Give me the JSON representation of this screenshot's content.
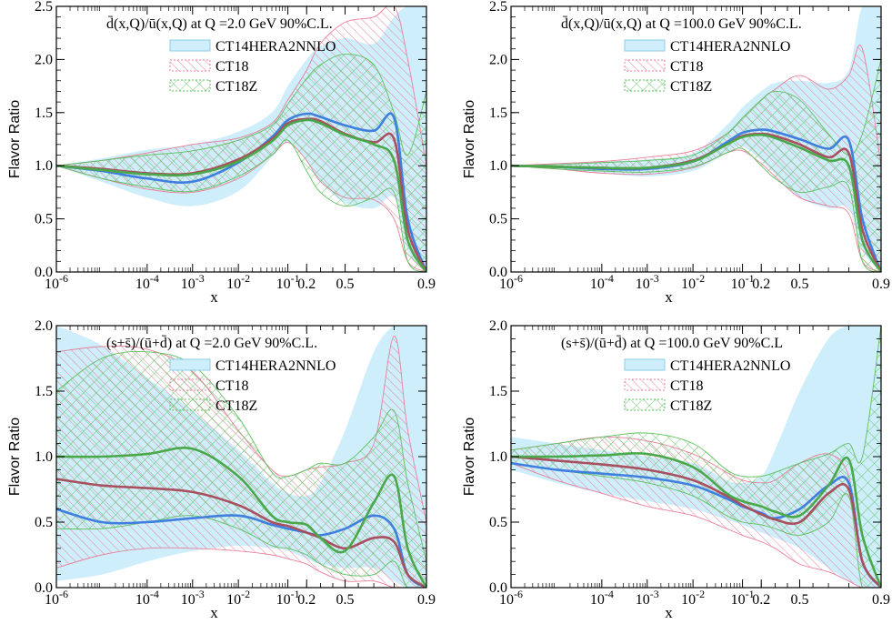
{
  "colors": {
    "ct14": "#3f7fdf",
    "ct14_band_fill": "#cdeefa",
    "ct14_band_edge": "#8fcde8",
    "ct18": "#a85060",
    "ct18_band": "#e8809a",
    "ct18z": "#4aa84a",
    "ct18z_band": "#5ec05e"
  },
  "chart_data": [
    {
      "type": "line",
      "title": "d̄(x,Q)/ū(x,Q) at Q =2.0 GeV 90%C.L.",
      "xlabel": "x",
      "ylabel": "Flavor Ratio",
      "x_scale": "log-log(1/x) hybrid",
      "xlim": [
        1e-06,
        0.9
      ],
      "ylim": [
        0,
        2.5
      ],
      "x_ticks": [
        "10-6",
        "10-4",
        "10-3",
        "10-2",
        "10-1",
        "0.2",
        "0.5",
        "0.9"
      ],
      "y_ticks": [
        "0.0",
        "0.5",
        "1.0",
        "1.5",
        "2.0",
        "2.5"
      ],
      "legend_position": "top-right",
      "legend": [
        "CT14HERA2NNLO",
        "CT18",
        "CT18Z"
      ],
      "x": [
        1e-06,
        1e-05,
        0.0001,
        0.001,
        0.01,
        0.05,
        0.1,
        0.2,
        0.3,
        0.5,
        0.7,
        0.8,
        0.85,
        0.9
      ],
      "series": [
        {
          "name": "CT14HERA2NNLO",
          "values": [
            1.0,
            0.95,
            0.88,
            0.85,
            1.03,
            1.27,
            1.43,
            1.49,
            1.46,
            1.38,
            1.33,
            1.45,
            0.5,
            0.0
          ],
          "band_low": [
            1.0,
            0.85,
            0.7,
            0.62,
            0.76,
            1.08,
            1.22,
            1.05,
            0.85,
            0.65,
            0.6,
            0.7,
            0.2,
            0.0
          ],
          "band_high": [
            1.0,
            1.07,
            1.15,
            1.2,
            1.32,
            1.5,
            1.75,
            2.0,
            2.12,
            2.2,
            2.15,
            2.4,
            2.5,
            2.5
          ]
        },
        {
          "name": "CT18",
          "values": [
            1.0,
            0.97,
            0.93,
            0.93,
            1.06,
            1.25,
            1.4,
            1.44,
            1.42,
            1.3,
            1.22,
            1.25,
            0.4,
            0.0
          ],
          "band_low": [
            1.0,
            0.88,
            0.78,
            0.75,
            0.88,
            1.1,
            1.22,
            1.05,
            0.85,
            0.7,
            0.68,
            0.5,
            0.1,
            0.0
          ],
          "band_high": [
            1.0,
            1.05,
            1.12,
            1.2,
            1.26,
            1.4,
            1.62,
            1.9,
            2.15,
            2.35,
            2.4,
            2.5,
            2.0,
            1.0
          ]
        },
        {
          "name": "CT18Z",
          "values": [
            1.0,
            0.96,
            0.92,
            0.92,
            1.04,
            1.23,
            1.38,
            1.43,
            1.4,
            1.29,
            1.2,
            1.05,
            0.3,
            0.0
          ],
          "band_low": [
            1.0,
            0.88,
            0.8,
            0.76,
            0.9,
            1.1,
            1.24,
            0.95,
            0.75,
            0.62,
            0.7,
            0.75,
            0.1,
            0.0
          ],
          "band_high": [
            1.0,
            1.05,
            1.1,
            1.14,
            1.24,
            1.38,
            1.58,
            1.82,
            1.95,
            2.05,
            1.95,
            1.5,
            1.1,
            1.7
          ]
        }
      ]
    },
    {
      "type": "line",
      "title": "d̄(x,Q)/ū(x,Q) at Q =100.0 GeV 90%C.L.",
      "xlabel": "x",
      "ylabel": "Flavor Ratio",
      "x_scale": "log-log(1/x) hybrid",
      "xlim": [
        1e-06,
        0.9
      ],
      "ylim": [
        0,
        2.5
      ],
      "x_ticks": [
        "10-6",
        "10-4",
        "10-3",
        "10-2",
        "10-1",
        "0.2",
        "0.5",
        "0.9"
      ],
      "y_ticks": [
        "0.0",
        "0.5",
        "1.0",
        "1.5",
        "2.0",
        "2.5"
      ],
      "legend_position": "top-right",
      "legend": [
        "CT14HERA2NNLO",
        "CT18",
        "CT18Z"
      ],
      "x": [
        1e-06,
        1e-05,
        0.0001,
        0.001,
        0.01,
        0.05,
        0.1,
        0.2,
        0.3,
        0.5,
        0.7,
        0.8,
        0.85,
        0.9
      ],
      "series": [
        {
          "name": "CT14HERA2NNLO",
          "values": [
            1.0,
            0.99,
            0.97,
            0.97,
            1.04,
            1.22,
            1.31,
            1.34,
            1.32,
            1.25,
            1.16,
            1.24,
            0.5,
            0.0
          ],
          "band_low": [
            1.0,
            0.97,
            0.93,
            0.9,
            0.95,
            1.12,
            1.18,
            1.05,
            0.92,
            0.7,
            0.6,
            0.6,
            0.2,
            0.0
          ],
          "band_high": [
            1.0,
            1.02,
            1.04,
            1.06,
            1.12,
            1.38,
            1.55,
            1.7,
            1.78,
            1.8,
            1.78,
            1.9,
            2.5,
            2.5
          ]
        },
        {
          "name": "CT18",
          "values": [
            1.0,
            0.99,
            0.98,
            0.98,
            1.05,
            1.2,
            1.28,
            1.3,
            1.28,
            1.2,
            1.08,
            1.12,
            0.4,
            0.0
          ],
          "band_low": [
            1.0,
            0.97,
            0.93,
            0.92,
            0.98,
            1.12,
            1.14,
            1.02,
            0.9,
            0.7,
            0.62,
            0.55,
            0.1,
            0.0
          ],
          "band_high": [
            1.0,
            1.02,
            1.04,
            1.08,
            1.14,
            1.3,
            1.45,
            1.62,
            1.72,
            1.85,
            1.72,
            1.85,
            2.1,
            1.0
          ]
        },
        {
          "name": "CT18Z",
          "values": [
            1.0,
            0.99,
            0.98,
            0.98,
            1.04,
            1.2,
            1.27,
            1.29,
            1.26,
            1.17,
            1.05,
            1.0,
            0.3,
            0.0
          ],
          "band_low": [
            1.0,
            0.97,
            0.95,
            0.94,
            0.99,
            1.12,
            1.16,
            1.0,
            0.88,
            0.75,
            0.8,
            0.8,
            0.1,
            0.0
          ],
          "band_high": [
            1.0,
            1.01,
            1.03,
            1.05,
            1.1,
            1.3,
            1.45,
            1.62,
            1.7,
            1.62,
            1.3,
            1.1,
            1.3,
            2.0
          ]
        }
      ]
    },
    {
      "type": "line",
      "title": "(s+s̄)/(ū+d̄) at Q =2.0 GeV 90%C.L.",
      "xlabel": "x",
      "ylabel": "Flavor Ratio",
      "x_scale": "log-log(1/x) hybrid",
      "xlim": [
        1e-06,
        0.9
      ],
      "ylim": [
        0,
        2.0
      ],
      "x_ticks": [
        "10-6",
        "10-4",
        "10-3",
        "10-2",
        "10-1",
        "0.2",
        "0.5",
        "0.9"
      ],
      "y_ticks": [
        "0.0",
        "0.5",
        "1.0",
        "1.5",
        "2.0"
      ],
      "legend_position": "top-right",
      "legend": [
        "CT14HERA2NNLO",
        "CT18",
        "CT18Z"
      ],
      "x": [
        1e-06,
        1e-05,
        0.0001,
        0.001,
        0.01,
        0.05,
        0.1,
        0.2,
        0.3,
        0.5,
        0.7,
        0.8,
        0.85,
        0.9
      ],
      "series": [
        {
          "name": "CT14HERA2NNLO",
          "values": [
            0.6,
            0.5,
            0.5,
            0.53,
            0.55,
            0.48,
            0.45,
            0.42,
            0.4,
            0.45,
            0.55,
            0.45,
            0.1,
            0.0
          ],
          "band_low": [
            0.05,
            0.1,
            0.2,
            0.28,
            0.32,
            0.3,
            0.28,
            0.22,
            0.18,
            0.15,
            0.15,
            0.05,
            0.0,
            0.0
          ],
          "band_high": [
            2.0,
            1.85,
            1.6,
            1.35,
            1.05,
            0.8,
            0.72,
            0.7,
            0.8,
            1.2,
            1.8,
            2.0,
            2.0,
            2.0
          ]
        },
        {
          "name": "CT18",
          "values": [
            0.83,
            0.78,
            0.76,
            0.73,
            0.63,
            0.5,
            0.47,
            0.42,
            0.38,
            0.3,
            0.38,
            0.35,
            0.1,
            0.0
          ],
          "band_low": [
            0.15,
            0.25,
            0.3,
            0.3,
            0.28,
            0.25,
            0.22,
            0.18,
            0.12,
            0.05,
            0.05,
            0.0,
            0.0,
            0.0
          ],
          "band_high": [
            1.8,
            1.84,
            1.82,
            1.65,
            1.2,
            0.9,
            0.85,
            0.9,
            0.92,
            0.95,
            1.1,
            1.92,
            1.2,
            0.5
          ]
        },
        {
          "name": "CT18Z",
          "values": [
            1.0,
            1.0,
            1.02,
            1.06,
            0.85,
            0.55,
            0.5,
            0.48,
            0.38,
            0.28,
            0.65,
            0.85,
            0.3,
            0.0
          ],
          "band_low": [
            0.45,
            0.45,
            0.5,
            0.55,
            0.45,
            0.32,
            0.3,
            0.25,
            0.18,
            0.1,
            0.1,
            0.2,
            0.0,
            0.0
          ],
          "band_high": [
            1.5,
            1.75,
            1.8,
            1.7,
            1.3,
            0.88,
            0.85,
            0.9,
            0.95,
            0.95,
            1.15,
            1.35,
            0.8,
            0.2
          ]
        }
      ]
    },
    {
      "type": "line",
      "title": "(s+s̄)/(ū+d̄) at Q =100.0 GeV 90%C.L",
      "xlabel": "x",
      "ylabel": "Flavor Ratio",
      "x_scale": "log-log(1/x) hybrid",
      "xlim": [
        1e-06,
        0.9
      ],
      "ylim": [
        0,
        2.0
      ],
      "x_ticks": [
        "10-6",
        "10-4",
        "10-3",
        "10-2",
        "10-1",
        "0.2",
        "0.5",
        "0.9"
      ],
      "y_ticks": [
        "0.0",
        "0.5",
        "1.0",
        "1.5",
        "2.0"
      ],
      "legend_position": "top-right",
      "legend": [
        "CT14HERA2NNLO",
        "CT18",
        "CT18Z"
      ],
      "x": [
        1e-06,
        1e-05,
        0.0001,
        0.001,
        0.01,
        0.05,
        0.1,
        0.2,
        0.3,
        0.5,
        0.7,
        0.8,
        0.85,
        0.9
      ],
      "series": [
        {
          "name": "CT14HERA2NNLO",
          "values": [
            0.95,
            0.9,
            0.87,
            0.84,
            0.78,
            0.68,
            0.62,
            0.57,
            0.53,
            0.6,
            0.78,
            0.8,
            0.2,
            0.0
          ],
          "band_low": [
            0.9,
            0.8,
            0.72,
            0.66,
            0.6,
            0.52,
            0.48,
            0.42,
            0.38,
            0.3,
            0.15,
            0.05,
            0.0,
            0.0
          ],
          "band_high": [
            1.15,
            1.1,
            1.05,
            1.0,
            0.95,
            0.82,
            0.8,
            0.85,
            1.05,
            1.5,
            1.9,
            2.0,
            2.0,
            2.0
          ]
        },
        {
          "name": "CT18",
          "values": [
            1.0,
            0.97,
            0.94,
            0.9,
            0.82,
            0.7,
            0.63,
            0.56,
            0.52,
            0.5,
            0.72,
            0.75,
            0.2,
            0.0
          ],
          "band_low": [
            0.95,
            0.82,
            0.72,
            0.62,
            0.55,
            0.45,
            0.4,
            0.35,
            0.3,
            0.18,
            0.12,
            0.05,
            0.0,
            0.0
          ],
          "band_high": [
            1.05,
            1.1,
            1.15,
            1.12,
            1.02,
            0.88,
            0.82,
            0.8,
            0.82,
            0.95,
            1.02,
            0.85,
            0.2,
            0.0
          ]
        },
        {
          "name": "CT18Z",
          "values": [
            1.0,
            1.0,
            1.01,
            1.02,
            0.92,
            0.72,
            0.66,
            0.62,
            0.58,
            0.55,
            0.78,
            0.98,
            0.4,
            0.0
          ],
          "band_low": [
            0.95,
            0.9,
            0.85,
            0.8,
            0.7,
            0.55,
            0.5,
            0.48,
            0.45,
            0.4,
            0.5,
            0.7,
            0.0,
            0.0
          ],
          "band_high": [
            1.05,
            1.1,
            1.15,
            1.18,
            1.1,
            0.9,
            0.85,
            0.85,
            0.88,
            0.95,
            1.02,
            1.1,
            1.0,
            2.0
          ]
        }
      ]
    }
  ]
}
